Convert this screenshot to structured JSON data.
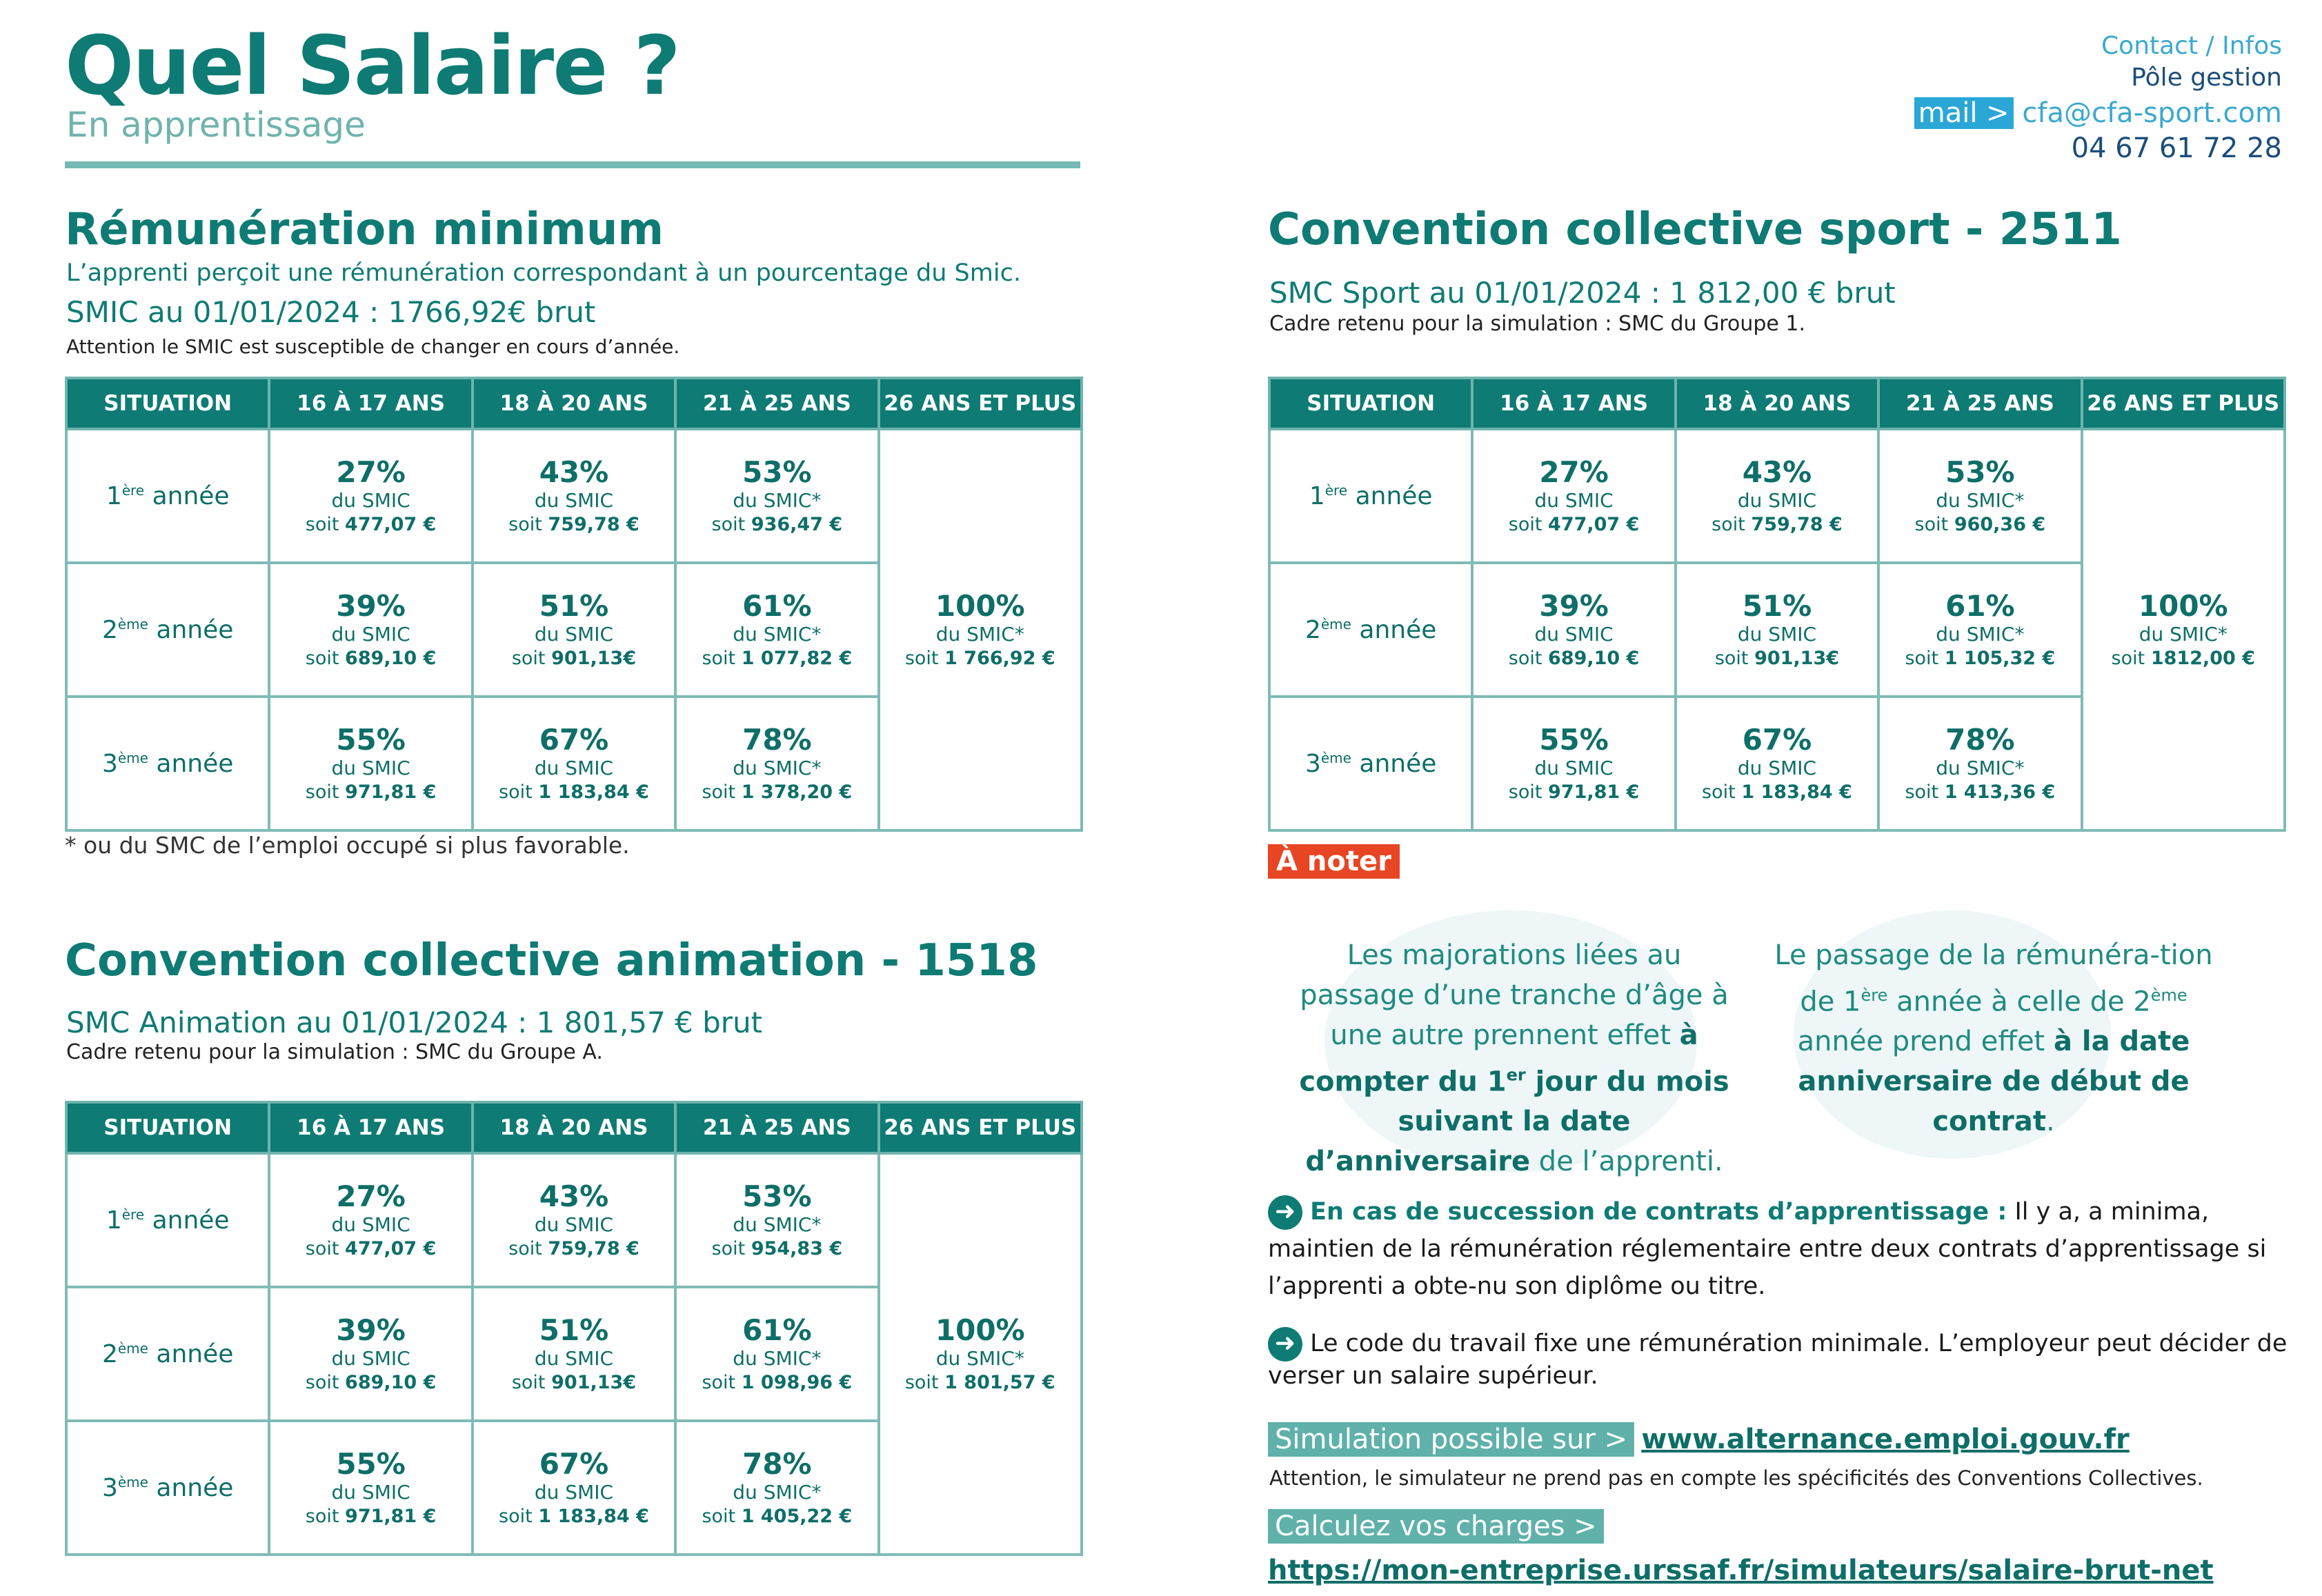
{
  "header": {
    "title": "Quel Salaire ?",
    "subtitle": "En apprentissage"
  },
  "contact": {
    "label": "Contact / Infos",
    "dept": "Pôle gestion",
    "mail_tag": "mail >",
    "email": "cfa@cfa-sport.com",
    "phone": "04 67 61 72 28"
  },
  "table_headers": [
    "SITUATION",
    "16 À 17 ANS",
    "18 À 20 ANS",
    "21 À 25 ANS",
    "26 ANS ET PLUS"
  ],
  "years": [
    {
      "n": "1",
      "sup": "ère",
      "label": "année"
    },
    {
      "n": "2",
      "sup": "ème",
      "label": "année"
    },
    {
      "n": "3",
      "sup": "ème",
      "label": "année"
    }
  ],
  "min": {
    "title": "Rémunération minimum",
    "intro": "L’apprenti perçoit une rémunération correspondant à un pourcentage du Smic.",
    "smic": "SMIC au 01/01/2024 : 1766,92€ brut",
    "warning": "Attention le SMIC est susceptible de changer en cours d’année.",
    "rows": [
      [
        {
          "pct": "27%",
          "du": "du SMIC",
          "soit": "soit",
          "amt": "477,07 €"
        },
        {
          "pct": "43%",
          "du": "du SMIC",
          "soit": "soit",
          "amt": "759,78 €"
        },
        {
          "pct": "53%",
          "du": "du SMIC*",
          "soit": "soit",
          "amt": "936,47 €"
        }
      ],
      [
        {
          "pct": "39%",
          "du": "du SMIC",
          "soit": "soit",
          "amt": "689,10 €"
        },
        {
          "pct": "51%",
          "du": "du SMIC",
          "soit": "soit",
          "amt": "901,13€"
        },
        {
          "pct": "61%",
          "du": "du SMIC*",
          "soit": "soit",
          "amt": "1 077,82 €"
        }
      ],
      [
        {
          "pct": "55%",
          "du": "du SMIC",
          "soit": "soit",
          "amt": "971,81 €"
        },
        {
          "pct": "67%",
          "du": "du SMIC",
          "soit": "soit",
          "amt": "1 183,84 €"
        },
        {
          "pct": "78%",
          "du": "du SMIC*",
          "soit": "soit",
          "amt": "1 378,20 €"
        }
      ]
    ],
    "plus26": {
      "pct": "100%",
      "du": "du SMIC*",
      "soit": "soit",
      "amt": "1 766,92 €"
    },
    "footnote": "* ou du SMC de l’emploi occupé si plus favorable."
  },
  "anim": {
    "title": "Convention collective animation - 1518",
    "smc": "SMC Animation au 01/01/2024 : 1 801,57 € brut",
    "cadre": "Cadre retenu pour la simulation : SMC du Groupe A.",
    "rows": [
      [
        {
          "pct": "27%",
          "du": "du SMIC",
          "soit": "soit",
          "amt": "477,07 €"
        },
        {
          "pct": "43%",
          "du": "du SMIC",
          "soit": "soit",
          "amt": "759,78 €"
        },
        {
          "pct": "53%",
          "du": "du SMIC*",
          "soit": "soit",
          "amt": "954,83 €"
        }
      ],
      [
        {
          "pct": "39%",
          "du": "du SMIC",
          "soit": "soit",
          "amt": "689,10 €"
        },
        {
          "pct": "51%",
          "du": "du SMIC",
          "soit": "soit",
          "amt": "901,13€"
        },
        {
          "pct": "61%",
          "du": "du SMIC*",
          "soit": "soit",
          "amt": "1 098,96 €"
        }
      ],
      [
        {
          "pct": "55%",
          "du": "du SMIC",
          "soit": "soit",
          "amt": "971,81 €"
        },
        {
          "pct": "67%",
          "du": "du SMIC",
          "soit": "soit",
          "amt": "1 183,84 €"
        },
        {
          "pct": "78%",
          "du": "du SMIC*",
          "soit": "soit ",
          "amt": "1 405,22 €"
        }
      ]
    ],
    "plus26": {
      "pct": "100%",
      "du": "du SMIC*",
      "soit": "soit",
      "amt": "1 801,57 €"
    }
  },
  "sport": {
    "title": "Convention collective sport - 2511",
    "smc": "SMC Sport au 01/01/2024 : 1 812,00 € brut",
    "cadre": "Cadre retenu pour la simulation : SMC du Groupe 1.",
    "rows": [
      [
        {
          "pct": "27%",
          "du": "du SMIC",
          "soit": "soit",
          "amt": "477,07 €"
        },
        {
          "pct": "43%",
          "du": "du SMIC",
          "soit": "soit",
          "amt": "759,78 €"
        },
        {
          "pct": "53%",
          "du": "du SMIC*",
          "soit": "soit",
          "amt": "960,36 €"
        }
      ],
      [
        {
          "pct": "39%",
          "du": "du SMIC",
          "soit": "soit",
          "amt": "689,10 €"
        },
        {
          "pct": "51%",
          "du": "du SMIC",
          "soit": "soit",
          "amt": "901,13€"
        },
        {
          "pct": "61%",
          "du": "du SMIC*",
          "soit": "soit",
          "amt": "1 105,32 €"
        }
      ],
      [
        {
          "pct": "55%",
          "du": "du SMIC",
          "soit": "soit",
          "amt": "971,81 €"
        },
        {
          "pct": "67%",
          "du": "du SMIC",
          "soit": "soit",
          "amt": "1 183,84 €"
        },
        {
          "pct": "78%",
          "du": "du SMIC*",
          "soit": "soit ",
          "amt": "1 413,36 €"
        }
      ]
    ],
    "plus26": {
      "pct": "100%",
      "du": "du SMIC*",
      "soit": "soit",
      "amt": "1812,00 €"
    }
  },
  "notes": {
    "badge": "À noter",
    "note1_a": "Les majorations liées au passage d’une tranche d’âge à une autre prennent effet ",
    "note1_b1": "à compter du 1",
    "note1_sup": "er",
    "note1_b2": " jour du mois suivant la date d’anniversaire",
    "note1_c": " de l’apprenti.",
    "note2_a1": "Le passage de la rémunéra-tion de 1",
    "note2_sup1": "ère",
    "note2_a2": " année à celle de 2",
    "note2_sup2": "ème",
    "note2_a3": " année prend effet ",
    "note2_b": "à la date anniversaire de début de contrat",
    "note2_c": ".",
    "succession_lead": "En cas de succession de contrats d’apprentissage :",
    "succession_text": " Il y a, a minima, maintien de la rémunération réglementaire entre deux contrats d’apprentissage si l’apprenti a obte-nu son diplôme ou titre.",
    "code_text": " Le code du travail fixe une rémunération minimale. L’employeur peut décider de verser un salaire supérieur.",
    "arrow": "➜",
    "sim_tag": "Simulation possible sur >",
    "sim_link": "www.alternance.emploi.gouv.fr",
    "sim_warn": "Attention, le simulateur ne prend pas en compte les spécificités des Conventions Collectives.",
    "charges_tag": "Calculez vos charges >",
    "charges_link": "https://mon-entreprise.urssaf.fr/simulateurs/salaire-brut-net"
  }
}
